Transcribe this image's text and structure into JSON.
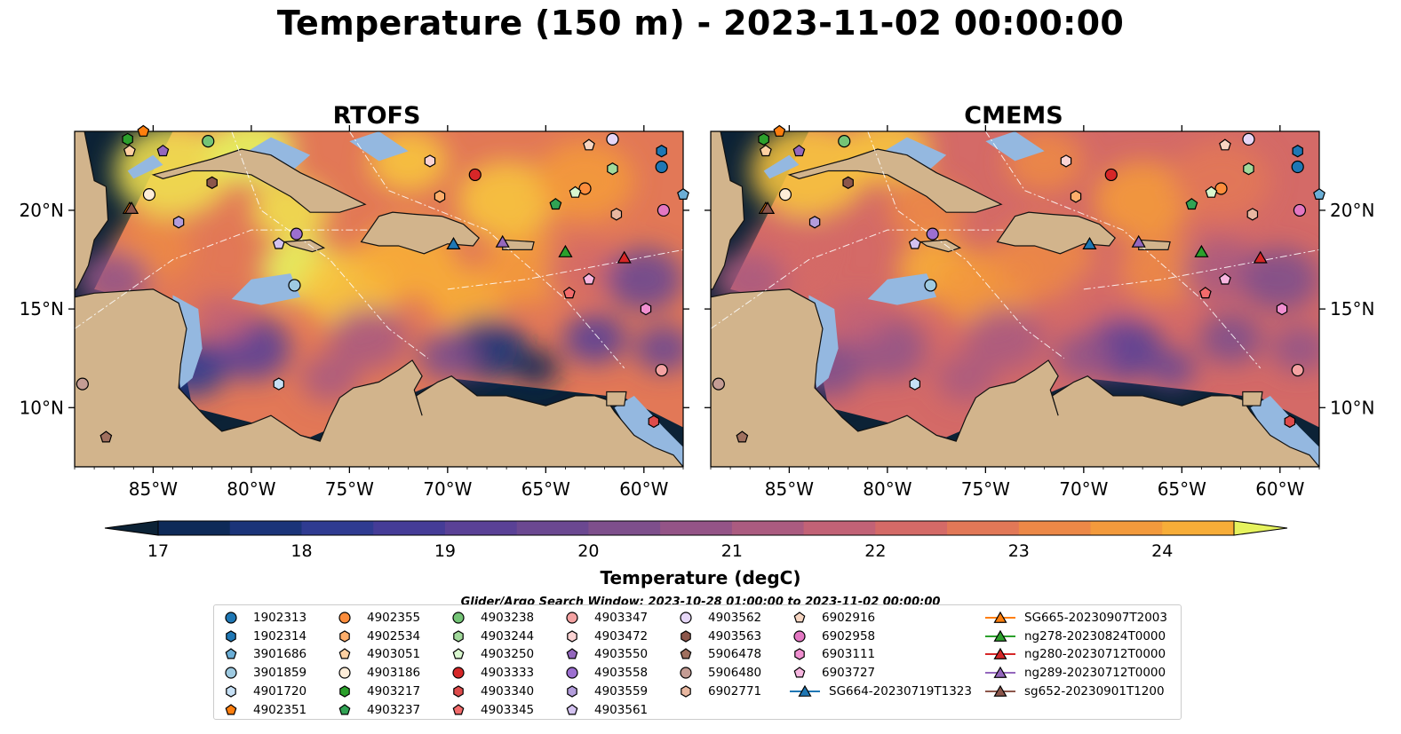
{
  "title": "Temperature (150 m) - 2023-11-02 00:00:00",
  "panels": [
    {
      "title": "RTOFS"
    },
    {
      "title": "CMEMS"
    }
  ],
  "colorbar": {
    "label": "Temperature (degC)",
    "ticks": [
      "17",
      "18",
      "19",
      "20",
      "21",
      "22",
      "23",
      "24"
    ],
    "range": [
      17,
      24.5
    ],
    "step": 0.5,
    "extend": "both",
    "colors": [
      "#0c2236",
      "#0e2a58",
      "#1b3479",
      "#2f3b91",
      "#453c97",
      "#5a4196",
      "#6b4891",
      "#7e4f8c",
      "#945487",
      "#ab5b80",
      "#c26276",
      "#d46a67",
      "#e27857",
      "#ec8847",
      "#f39a3c",
      "#f7ad38",
      "#f7c43f",
      "#f0df4f",
      "#e6f35e"
    ]
  },
  "axes": {
    "lon_ticks": [
      "85°W",
      "80°W",
      "75°W",
      "70°W",
      "65°W",
      "60°W"
    ],
    "lat_ticks": [
      "20°N",
      "15°N",
      "10°N"
    ],
    "lon_range": [
      -89,
      -58
    ],
    "lat_range": [
      7,
      24
    ]
  },
  "search_window": "Glider/Argo Search Window: 2023-10-28 01:00:00 to 2023-11-02 00:00:00",
  "legend": {
    "columns": [
      [
        {
          "label": "1902313",
          "color": "#1f77b4",
          "marker": "circle"
        },
        {
          "label": "1902314",
          "color": "#1f77b4",
          "marker": "hexagon"
        },
        {
          "label": "3901686",
          "color": "#6baed6",
          "marker": "pentagon"
        },
        {
          "label": "3901859",
          "color": "#9ecae1",
          "marker": "circle"
        },
        {
          "label": "4901720",
          "color": "#c6e0f5",
          "marker": "hexagon"
        },
        {
          "label": "4902351",
          "color": "#ff7f0e",
          "marker": "pentagon"
        }
      ],
      [
        {
          "label": "4902355",
          "color": "#fd8d3c",
          "marker": "circle"
        },
        {
          "label": "4902534",
          "color": "#fdae6b",
          "marker": "hexagon"
        },
        {
          "label": "4903051",
          "color": "#fdd0a2",
          "marker": "pentagon"
        },
        {
          "label": "4903186",
          "color": "#feedd8",
          "marker": "circle"
        },
        {
          "label": "4903217",
          "color": "#2ca02c",
          "marker": "hexagon"
        },
        {
          "label": "4903237",
          "color": "#31a354",
          "marker": "pentagon"
        }
      ],
      [
        {
          "label": "4903238",
          "color": "#74c476",
          "marker": "circle"
        },
        {
          "label": "4903244",
          "color": "#a1d99b",
          "marker": "hexagon"
        },
        {
          "label": "4903250",
          "color": "#d9f7cf",
          "marker": "pentagon"
        },
        {
          "label": "4903333",
          "color": "#d62728",
          "marker": "circle"
        },
        {
          "label": "4903340",
          "color": "#de4b4b",
          "marker": "hexagon"
        },
        {
          "label": "4903345",
          "color": "#f26b6b",
          "marker": "pentagon"
        }
      ],
      [
        {
          "label": "4903347",
          "color": "#f4a2a2",
          "marker": "circle"
        },
        {
          "label": "4903472",
          "color": "#fbd3d3",
          "marker": "hexagon"
        },
        {
          "label": "4903550",
          "color": "#9467bd",
          "marker": "pentagon"
        },
        {
          "label": "4903558",
          "color": "#9c6fd0",
          "marker": "circle"
        },
        {
          "label": "4903559",
          "color": "#b39ddb",
          "marker": "hexagon"
        },
        {
          "label": "4903561",
          "color": "#d3c2f0",
          "marker": "pentagon"
        }
      ],
      [
        {
          "label": "4903562",
          "color": "#e6d7f7",
          "marker": "circle"
        },
        {
          "label": "4903563",
          "color": "#8c564b",
          "marker": "hexagon"
        },
        {
          "label": "5906478",
          "color": "#a0705f",
          "marker": "pentagon"
        },
        {
          "label": "5906480",
          "color": "#c49c94",
          "marker": "circle"
        },
        {
          "label": "6902771",
          "color": "#e8b7a0",
          "marker": "hexagon"
        }
      ],
      [
        {
          "label": "6902916",
          "color": "#f7d6c2",
          "marker": "pentagon"
        },
        {
          "label": "6902958",
          "color": "#e377c2",
          "marker": "circle"
        },
        {
          "label": "6903111",
          "color": "#f08fd0",
          "marker": "hexagon"
        },
        {
          "label": "6903727",
          "color": "#f7b6e0",
          "marker": "pentagon"
        },
        {
          "label": "SG664-20230719T1323",
          "color": "#1f77b4",
          "marker": "triangle-line"
        }
      ],
      [
        {
          "label": "SG665-20230907T2003",
          "color": "#ff7f0e",
          "marker": "triangle-line"
        },
        {
          "label": "ng278-20230824T0000",
          "color": "#2ca02c",
          "marker": "triangle-line"
        },
        {
          "label": "ng280-20230712T0000",
          "color": "#d62728",
          "marker": "triangle-line"
        },
        {
          "label": "ng289-20230712T0000",
          "color": "#9467bd",
          "marker": "triangle-line"
        },
        {
          "label": "sg652-20230901T1200",
          "color": "#8c564b",
          "marker": "triangle-line"
        }
      ]
    ]
  },
  "chart_data": {
    "type": "heatmap",
    "title": "Temperature (150 m) - 2023-11-02 00:00:00",
    "variable": "Temperature (degC)",
    "depth": "150 m",
    "panels": [
      "RTOFS",
      "CMEMS"
    ],
    "value_range": [
      17,
      24.5
    ],
    "map_extent": {
      "lon": [
        -89,
        -58
      ],
      "lat": [
        7,
        24
      ]
    },
    "platforms": [
      {
        "name": "1902313",
        "lon": -59.1,
        "lat": 22.2
      },
      {
        "name": "1902314",
        "lon": -59.1,
        "lat": 23.0
      },
      {
        "name": "3901686",
        "lon": -58.0,
        "lat": 20.8
      },
      {
        "name": "3901859",
        "lon": -77.8,
        "lat": 16.2
      },
      {
        "name": "4901720",
        "lon": -78.6,
        "lat": 11.2
      },
      {
        "name": "4902351",
        "lon": -85.5,
        "lat": 24.0
      },
      {
        "name": "4902355",
        "lon": -63.0,
        "lat": 21.1
      },
      {
        "name": "4902534",
        "lon": -70.4,
        "lat": 20.7
      },
      {
        "name": "4903051",
        "lon": -86.2,
        "lat": 23.0
      },
      {
        "name": "4903186",
        "lon": -85.2,
        "lat": 20.8
      },
      {
        "name": "4903217",
        "lon": -86.3,
        "lat": 23.6
      },
      {
        "name": "4903237",
        "lon": -64.5,
        "lat": 20.3
      },
      {
        "name": "4903238",
        "lon": -82.2,
        "lat": 23.5
      },
      {
        "name": "4903244",
        "lon": -61.6,
        "lat": 22.1
      },
      {
        "name": "4903250",
        "lon": -63.5,
        "lat": 20.9
      },
      {
        "name": "4903333",
        "lon": -68.6,
        "lat": 21.8
      },
      {
        "name": "4903340",
        "lon": -59.5,
        "lat": 9.3
      },
      {
        "name": "4903345",
        "lon": -63.8,
        "lat": 15.8
      },
      {
        "name": "4903347",
        "lon": -59.1,
        "lat": 11.9
      },
      {
        "name": "4903472",
        "lon": -70.9,
        "lat": 22.5
      },
      {
        "name": "4903550",
        "lon": -84.5,
        "lat": 23.0
      },
      {
        "name": "4903558",
        "lon": -77.7,
        "lat": 18.8
      },
      {
        "name": "4903559",
        "lon": -83.7,
        "lat": 19.4
      },
      {
        "name": "4903561",
        "lon": -78.6,
        "lat": 18.3
      },
      {
        "name": "4903562",
        "lon": -61.6,
        "lat": 23.6
      },
      {
        "name": "4903563",
        "lon": -82.0,
        "lat": 21.4
      },
      {
        "name": "5906478",
        "lon": -87.4,
        "lat": 8.5
      },
      {
        "name": "5906480",
        "lon": -88.6,
        "lat": 11.2
      },
      {
        "name": "6902771",
        "lon": -61.4,
        "lat": 19.8
      },
      {
        "name": "6902916",
        "lon": -62.8,
        "lat": 23.3
      },
      {
        "name": "6902958",
        "lon": -59.0,
        "lat": 20.0
      },
      {
        "name": "6903111",
        "lon": -59.9,
        "lat": 15.0
      },
      {
        "name": "6903727",
        "lon": -62.8,
        "lat": 16.5
      },
      {
        "name": "SG664-20230719T1323",
        "lon": -69.7,
        "lat": 18.3
      },
      {
        "name": "SG665-20230907T2003",
        "lon": -86.2,
        "lat": 20.1
      },
      {
        "name": "ng278-20230824T0000",
        "lon": -64.0,
        "lat": 17.9
      },
      {
        "name": "ng280-20230712T0000",
        "lon": -61.0,
        "lat": 17.6
      },
      {
        "name": "ng289-20230712T0000",
        "lon": -67.2,
        "lat": 18.4
      },
      {
        "name": "sg652-20230901T1200",
        "lon": -86.1,
        "lat": 20.1
      }
    ]
  }
}
